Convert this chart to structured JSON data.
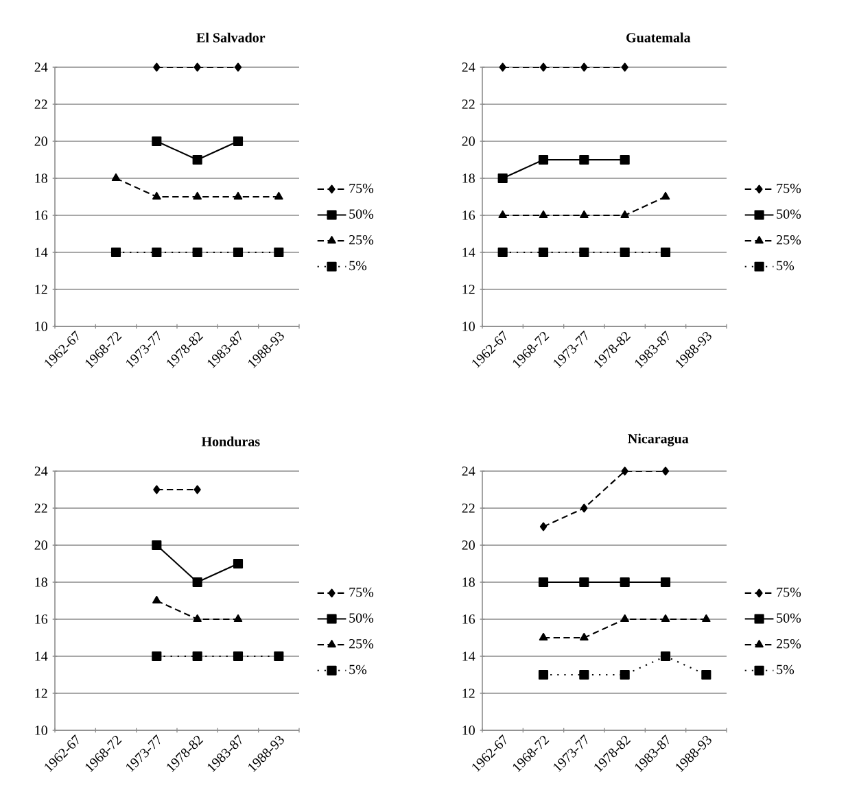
{
  "chart_data": [
    {
      "type": "line",
      "title": "El Salvador",
      "categories": [
        "1962-67",
        "1968-72",
        "1973-77",
        "1978-82",
        "1983-87",
        "1988-93"
      ],
      "ylim": [
        10,
        24
      ],
      "yticks": [
        10,
        12,
        14,
        16,
        18,
        20,
        22,
        24
      ],
      "grid": "y",
      "legend": "right",
      "series": [
        {
          "name": "75%",
          "color": "#000000",
          "marker": "diamond",
          "line_style": "dashed",
          "values": [
            null,
            null,
            24,
            24,
            24,
            null
          ]
        },
        {
          "name": "50%",
          "color": "#000000",
          "marker": "square",
          "line_style": "solid",
          "values": [
            null,
            null,
            20,
            19,
            20,
            null
          ]
        },
        {
          "name": "25%",
          "color": "#000000",
          "marker": "triangle",
          "line_style": "dashed",
          "values": [
            null,
            18,
            17,
            17,
            17,
            17
          ]
        },
        {
          "name": "5%",
          "color": "#000000",
          "marker": "square",
          "line_style": "dotted",
          "values": [
            null,
            14,
            14,
            14,
            14,
            14
          ]
        }
      ]
    },
    {
      "type": "line",
      "title": "Guatemala",
      "categories": [
        "1962-67",
        "1968-72",
        "1973-77",
        "1978-82",
        "1983-87",
        "1988-93"
      ],
      "ylim": [
        10,
        24
      ],
      "yticks": [
        10,
        12,
        14,
        16,
        18,
        20,
        22,
        24
      ],
      "grid": "y",
      "legend": "right",
      "series": [
        {
          "name": "75%",
          "color": "#000000",
          "marker": "diamond",
          "line_style": "dashed",
          "values": [
            24,
            24,
            24,
            24,
            null,
            null
          ]
        },
        {
          "name": "50%",
          "color": "#000000",
          "marker": "square",
          "line_style": "solid",
          "values": [
            18,
            19,
            19,
            19,
            null,
            null
          ]
        },
        {
          "name": "25%",
          "color": "#000000",
          "marker": "triangle",
          "line_style": "dashed",
          "values": [
            16,
            16,
            16,
            16,
            17,
            null
          ]
        },
        {
          "name": "5%",
          "color": "#000000",
          "marker": "square",
          "line_style": "dotted",
          "values": [
            14,
            14,
            14,
            14,
            14,
            null
          ]
        }
      ]
    },
    {
      "type": "line",
      "title": "Honduras",
      "categories": [
        "1962-67",
        "1968-72",
        "1973-77",
        "1978-82",
        "1983-87",
        "1988-93"
      ],
      "ylim": [
        10,
        24
      ],
      "yticks": [
        10,
        12,
        14,
        16,
        18,
        20,
        22,
        24
      ],
      "grid": "y",
      "legend": "right",
      "series": [
        {
          "name": "75%",
          "color": "#000000",
          "marker": "diamond",
          "line_style": "dashed",
          "values": [
            null,
            null,
            23,
            23,
            null,
            null
          ]
        },
        {
          "name": "50%",
          "color": "#000000",
          "marker": "square",
          "line_style": "solid",
          "values": [
            null,
            null,
            20,
            18,
            19,
            null
          ]
        },
        {
          "name": "25%",
          "color": "#000000",
          "marker": "triangle",
          "line_style": "dashed",
          "values": [
            null,
            null,
            17,
            16,
            16,
            null
          ]
        },
        {
          "name": "5%",
          "color": "#000000",
          "marker": "square",
          "line_style": "dotted",
          "values": [
            null,
            null,
            14,
            14,
            14,
            14
          ]
        }
      ]
    },
    {
      "type": "line",
      "title": "Nicaragua",
      "categories": [
        "1962-67",
        "1968-72",
        "1973-77",
        "1978-82",
        "1983-87",
        "1988-93"
      ],
      "ylim": [
        10,
        24
      ],
      "yticks": [
        10,
        12,
        14,
        16,
        18,
        20,
        22,
        24
      ],
      "grid": "y",
      "legend": "right",
      "series": [
        {
          "name": "75%",
          "color": "#000000",
          "marker": "diamond",
          "line_style": "dashed",
          "values": [
            null,
            21,
            22,
            24,
            24,
            null
          ]
        },
        {
          "name": "50%",
          "color": "#000000",
          "marker": "square",
          "line_style": "solid",
          "values": [
            null,
            18,
            18,
            18,
            18,
            null
          ]
        },
        {
          "name": "25%",
          "color": "#000000",
          "marker": "triangle",
          "line_style": "dashed",
          "values": [
            null,
            15,
            15,
            16,
            16,
            16
          ]
        },
        {
          "name": "5%",
          "color": "#000000",
          "marker": "square",
          "line_style": "dotted",
          "values": [
            null,
            13,
            13,
            13,
            14,
            13
          ]
        }
      ]
    }
  ]
}
